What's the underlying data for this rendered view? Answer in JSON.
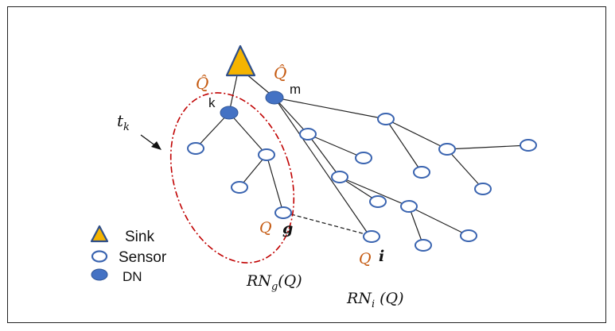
{
  "colors": {
    "sink_fill": "#F5B400",
    "sink_stroke": "#2F4F8A",
    "sensor_stroke": "#3A64B0",
    "dn_fill": "#4472C4",
    "ellipse": "#C00000",
    "q_color": "#C55A11",
    "edge": "#222222"
  },
  "labels": {
    "q_k": "Q̂",
    "q_m": "Q̂",
    "k": "k",
    "m": "m",
    "t_k_main": "t",
    "t_k_sub": "k",
    "q_g": "Q",
    "g": "g",
    "q_i": "Q",
    "i": "i",
    "rn_g_main": "RN",
    "rn_g_sub": "g",
    "rn_g_arg": "(Q)",
    "rn_i_main": "RN",
    "rn_i_sub": "i",
    "rn_i_arg": " (Q)"
  },
  "legend": {
    "sink": "Sink",
    "sensor": "Sensor",
    "dn": "DN"
  }
}
